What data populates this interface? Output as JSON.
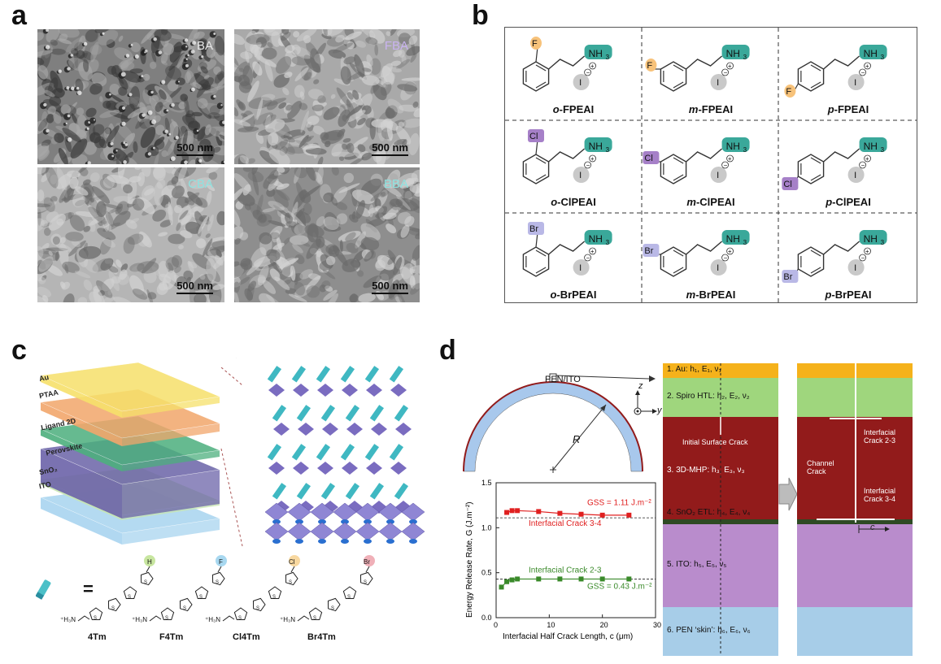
{
  "panels": {
    "a": "a",
    "b": "b",
    "c": "c",
    "d": "d"
  },
  "panel_a": {
    "images": [
      {
        "label": "BA",
        "label_color": "#e8e8e8",
        "scale": "500 nm",
        "base": "#7f7f7f"
      },
      {
        "label": "FBA",
        "label_color": "#c9b3f0",
        "scale": "500 nm",
        "base": "#a9a9a9"
      },
      {
        "label": "CBA",
        "label_color": "#8fe3e0",
        "scale": "500 nm",
        "base": "#b5b5b5"
      },
      {
        "label": "BBA",
        "label_color": "#8fe3e0",
        "scale": "500 nm",
        "base": "#8e8e8e"
      }
    ]
  },
  "panel_b": {
    "molecules": [
      {
        "name": "o-FPEAI",
        "prefix": "o",
        "suffix": "-FPEAI",
        "halogen": "F",
        "pos": "ortho",
        "color": "#f7c27a"
      },
      {
        "name": "m-FPEAI",
        "prefix": "m",
        "suffix": "-FPEAI",
        "halogen": "F",
        "pos": "meta",
        "color": "#f7c27a"
      },
      {
        "name": "p-FPEAI",
        "prefix": "p",
        "suffix": "-FPEAI",
        "halogen": "F",
        "pos": "para",
        "color": "#f7c27a"
      },
      {
        "name": "o-ClPEAI",
        "prefix": "o",
        "suffix": "-ClPEAI",
        "halogen": "Cl",
        "pos": "ortho",
        "color": "#a680c8"
      },
      {
        "name": "m-ClPEAI",
        "prefix": "m",
        "suffix": "-ClPEAI",
        "halogen": "Cl",
        "pos": "meta",
        "color": "#a680c8"
      },
      {
        "name": "p-ClPEAI",
        "prefix": "p",
        "suffix": "-ClPEAI",
        "halogen": "Cl",
        "pos": "para",
        "color": "#a680c8"
      },
      {
        "name": "o-BrPEAI",
        "prefix": "o",
        "suffix": "-BrPEAI",
        "halogen": "Br",
        "pos": "ortho",
        "color": "#b9b8e6"
      },
      {
        "name": "m-BrPEAI",
        "prefix": "m",
        "suffix": "-BrPEAI",
        "halogen": "Br",
        "pos": "meta",
        "color": "#b9b8e6"
      },
      {
        "name": "p-BrPEAI",
        "prefix": "p",
        "suffix": "-BrPEAI",
        "halogen": "Br",
        "pos": "para",
        "color": "#b9b8e6"
      }
    ],
    "amine": "NH",
    "amine_sub": "3",
    "iodide": "I",
    "amine_color": "#3aa89a",
    "iodide_color": "#c9c9c9"
  },
  "panel_c": {
    "layers": [
      {
        "label": "Au",
        "color": "#f6e06a"
      },
      {
        "label": "PTAA",
        "color": "#f2a66b"
      },
      {
        "label": "Ligand 2D",
        "color": "#4caf7d"
      },
      {
        "label": "Perovskite",
        "color": "#6b63a8"
      },
      {
        "label": "SnO₂",
        "color": "#c8e6b0"
      },
      {
        "label": "ITO",
        "color": "#a8d4ef"
      }
    ],
    "equals": "=",
    "ligands": [
      {
        "name": "4Tm",
        "end": "H",
        "end_color": "#c8e6a0"
      },
      {
        "name": "F4Tm",
        "end": "F",
        "end_color": "#a8d8f0"
      },
      {
        "name": "Cl4Tm",
        "end": "Cl",
        "end_color": "#f8d8a0"
      },
      {
        "name": "Br4Tm",
        "end": "Br",
        "end_color": "#f0b0b8"
      }
    ],
    "amine_label": "⁺H₃N"
  },
  "panel_d": {
    "arc_label": "PEN/ITO",
    "radius_label": "R",
    "axis_z": "z",
    "axis_y": "y",
    "layers": [
      {
        "label": "1. Au: h₁, E₁, ν₁",
        "color": "#f5b21b"
      },
      {
        "label": "2. Spiro HTL: h₂, E₂, ν₂",
        "color": "#9fd67d"
      },
      {
        "label": "3. 3D-MHP: h₃, E₃, ν₃",
        "color": "#921b1b"
      },
      {
        "label": "4. SnO₂ ETL: h₄, E₄, ν₄",
        "color": "#2e4a24"
      },
      {
        "label": "5. ITO: h₅, E₅, ν₅",
        "color": "#b98ccc"
      },
      {
        "label": "6. PEN ‘skin’: h₆, E₆, ν₆",
        "color": "#a7cde8"
      }
    ],
    "initial_crack": "Initial Surface Crack",
    "channel_crack": "Channel Crack",
    "interfacial_23": "Interfacial Crack 2-3",
    "interfacial_34": "Interfacial Crack 3-4",
    "c_label": "c",
    "chart": {
      "ylabel": "Energy Release Rate, G (J.m⁻²)",
      "xlabel": "Interfacial Half Crack Length, c (μm)",
      "gss_red": "GSS = 1.11 J.m⁻²",
      "gss_green": "GSS = 0.43 J.m⁻²",
      "label_red": "Interfacial Crack 3-4",
      "label_green": "Interfacial Crack 2-3"
    }
  },
  "chart_data": {
    "type": "line",
    "xlabel": "Interfacial Half Crack Length, c (μm)",
    "ylabel": "Energy Release Rate, G (J.m⁻²)",
    "xlim": [
      0,
      30
    ],
    "ylim": [
      0,
      1.5
    ],
    "xticks": [
      0,
      10,
      20,
      30
    ],
    "yticks": [
      0,
      0.5,
      1.0,
      1.5
    ],
    "ytick_labels": [
      "0.0",
      "0.5",
      "1.0",
      "1.5"
    ],
    "xtick_labels": [
      "0",
      "10",
      "20",
      "30"
    ],
    "series": [
      {
        "name": "Interfacial Crack 3-4",
        "color": "#e02020",
        "x": [
          2,
          3,
          4,
          8,
          12,
          16,
          20,
          25
        ],
        "values": [
          1.17,
          1.19,
          1.19,
          1.18,
          1.16,
          1.15,
          1.14,
          1.14
        ],
        "gss": 1.11
      },
      {
        "name": "Interfacial Crack 2-3",
        "color": "#3a8a2a",
        "x": [
          1,
          2,
          3,
          4,
          8,
          12,
          16,
          20,
          25
        ],
        "values": [
          0.34,
          0.4,
          0.42,
          0.43,
          0.43,
          0.43,
          0.43,
          0.43,
          0.43
        ],
        "gss": 0.43
      }
    ]
  }
}
